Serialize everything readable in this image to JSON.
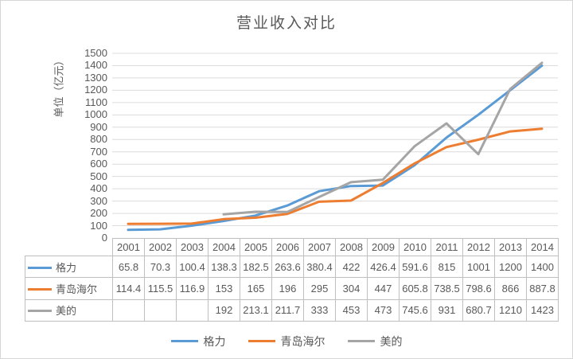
{
  "chart_data": {
    "type": "line",
    "title": "营业收入对比",
    "ylabel": "单位（亿元）",
    "xlabel": "",
    "categories": [
      "2001",
      "2002",
      "2003",
      "2004",
      "2005",
      "2006",
      "2007",
      "2008",
      "2009",
      "2010",
      "2011",
      "2012",
      "2013",
      "2014"
    ],
    "series": [
      {
        "name": "格力",
        "color": "#5B9BD5",
        "values": [
          65.8,
          70.3,
          100.4,
          138.3,
          182.5,
          263.6,
          380.4,
          422,
          426.4,
          591.6,
          815,
          1001,
          1200,
          1400
        ]
      },
      {
        "name": "青岛海尔",
        "color": "#ED7D31",
        "values": [
          114.4,
          115.5,
          116.9,
          153,
          165,
          196,
          295,
          304,
          447,
          605.8,
          738.5,
          798.6,
          866,
          887.8
        ]
      },
      {
        "name": "美的",
        "color": "#A5A5A5",
        "values": [
          null,
          null,
          null,
          192,
          213.1,
          211.7,
          333,
          453,
          473,
          745.6,
          931,
          680.7,
          1210,
          1423
        ]
      }
    ],
    "ylim": [
      0,
      1500
    ],
    "yticks": [
      0,
      100,
      200,
      300,
      400,
      500,
      600,
      700,
      800,
      900,
      1000,
      1100,
      1200,
      1300,
      1400,
      1500
    ],
    "grid": true,
    "legend_position": "bottom",
    "data_table": true,
    "gridline_color": "#dcdcdc",
    "axis_border_color": "#bfbfbf"
  }
}
